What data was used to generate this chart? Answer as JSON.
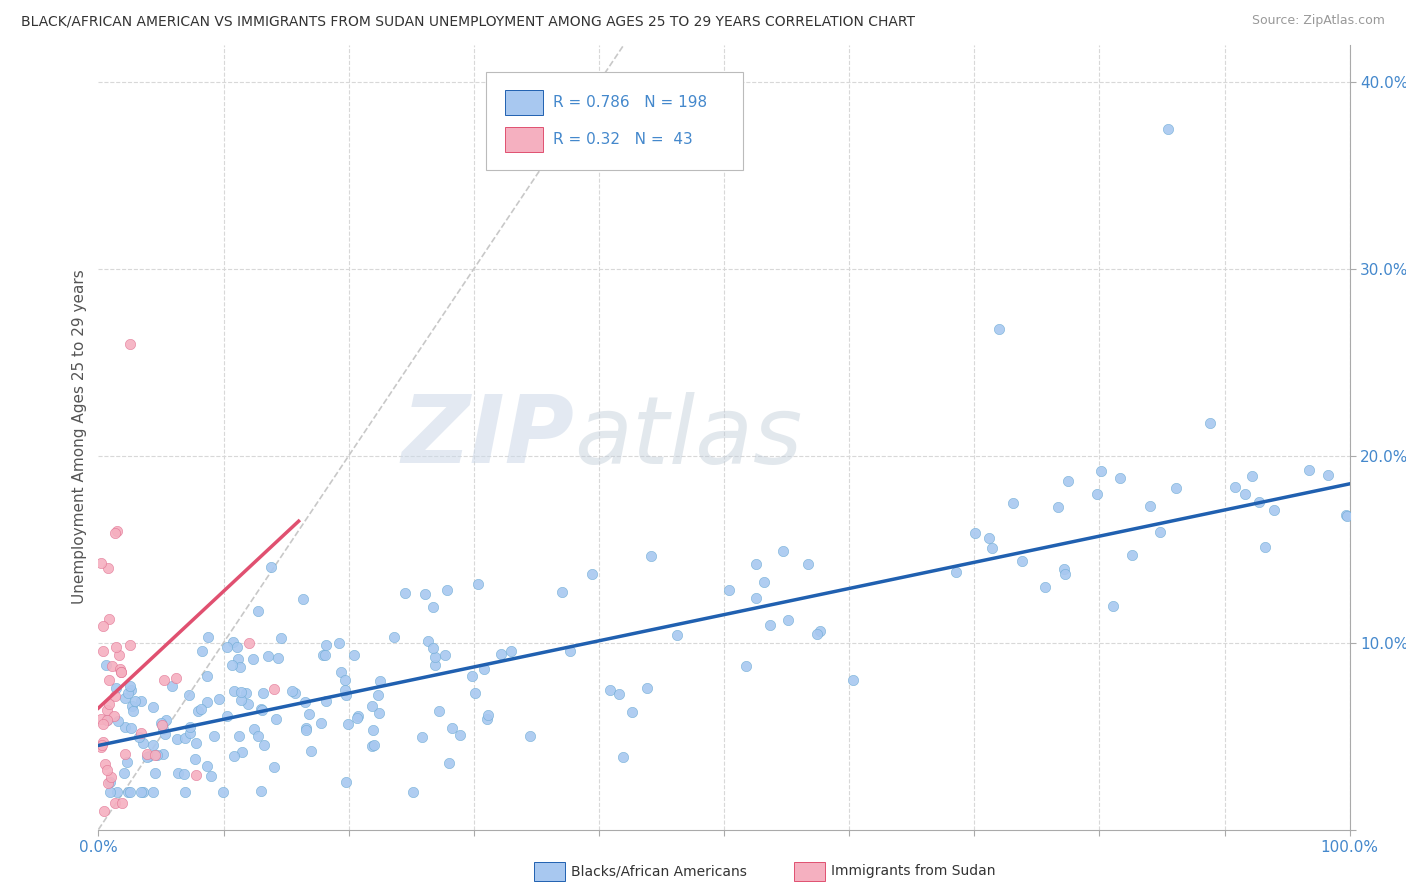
{
  "title": "BLACK/AFRICAN AMERICAN VS IMMIGRANTS FROM SUDAN UNEMPLOYMENT AMONG AGES 25 TO 29 YEARS CORRELATION CHART",
  "source": "Source: ZipAtlas.com",
  "ylabel": "Unemployment Among Ages 25 to 29 years",
  "xlim": [
    0,
    1.0
  ],
  "ylim": [
    0,
    0.42
  ],
  "x_tick_positions": [
    0,
    0.1,
    0.2,
    0.3,
    0.4,
    0.5,
    0.6,
    0.7,
    0.8,
    0.9,
    1.0
  ],
  "x_tick_labels": [
    "0.0%",
    "",
    "",
    "",
    "",
    "",
    "",
    "",
    "",
    "",
    "100.0%"
  ],
  "y_tick_positions": [
    0,
    0.1,
    0.2,
    0.3,
    0.4
  ],
  "y_tick_labels": [
    "",
    "10.0%",
    "20.0%",
    "30.0%",
    "40.0%"
  ],
  "watermark_zip": "ZIP",
  "watermark_atlas": "atlas",
  "blue_R": 0.786,
  "blue_N": 198,
  "pink_R": 0.32,
  "pink_N": 43,
  "blue_dot_color": "#a8c8f0",
  "blue_dot_edge": "#6aaad4",
  "pink_dot_color": "#f5b0c0",
  "pink_dot_edge": "#e07090",
  "blue_line_color": "#2060b0",
  "pink_line_color": "#e05070",
  "diag_color": "#c8c8c8",
  "grid_color": "#d8d8d8",
  "tick_color": "#4488cc",
  "background_color": "#ffffff",
  "blue_trend_x0": 0.0,
  "blue_trend_y0": 0.045,
  "blue_trend_x1": 1.0,
  "blue_trend_y1": 0.185,
  "pink_trend_x0": 0.0,
  "pink_trend_y0": 0.065,
  "pink_trend_x1": 0.16,
  "pink_trend_y1": 0.165
}
